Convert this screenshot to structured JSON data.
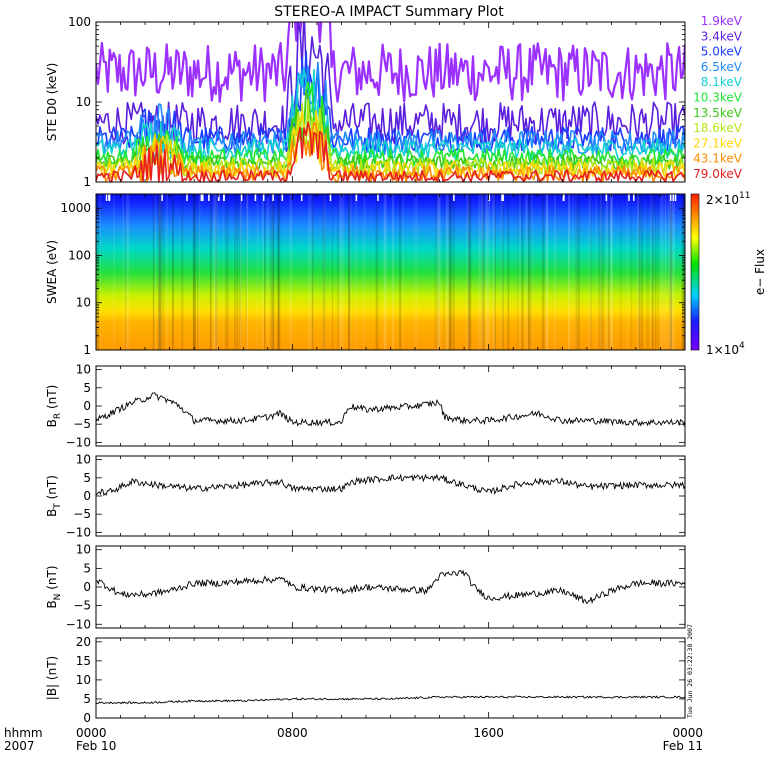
{
  "title": "STEREO-A IMPACT Summary Plot",
  "timestamp": "Tue Jun 26 03:22:38 2007",
  "colorbar": {
    "label": "e− Flux",
    "max_label": "2×10",
    "max_exp": "11",
    "min_label": "1×10",
    "min_exp": "4"
  },
  "time_axis": {
    "row1_label": "hhmm",
    "row2_label": "2007",
    "ticks": [
      {
        "hour": 0,
        "label": "0000",
        "date": "Feb 10"
      },
      {
        "hour": 8,
        "label": "0800",
        "date": ""
      },
      {
        "hour": 16,
        "label": "1600",
        "date": ""
      },
      {
        "hour": 24,
        "label": "0000",
        "date": "Feb 11"
      }
    ],
    "range_hours": [
      0,
      24
    ]
  },
  "chart_data": [
    {
      "type": "line",
      "panel": "ste",
      "ylabel": "STE D0 (keV)",
      "yscale": "log",
      "ylim": [
        1,
        100
      ],
      "yticks": [
        "1",
        "10",
        "100"
      ],
      "legend_position": "right",
      "series": [
        {
          "name": "1.9keV",
          "color": "#9b30ff",
          "level": [
            10,
            55
          ]
        },
        {
          "name": "3.4keV",
          "color": "#5a1edc",
          "level": [
            3,
            10
          ]
        },
        {
          "name": "5.0keV",
          "color": "#1a3cff",
          "level": [
            2.4,
            5
          ]
        },
        {
          "name": "6.5keV",
          "color": "#1e8cff",
          "level": [
            2.2,
            4.5
          ]
        },
        {
          "name": "8.1keV",
          "color": "#14d2d2",
          "level": [
            1.9,
            3.5
          ]
        },
        {
          "name": "10.3keV",
          "color": "#1ee632",
          "level": [
            1.6,
            2.6
          ]
        },
        {
          "name": "13.5keV",
          "color": "#3cc814",
          "level": [
            1.4,
            2.2
          ]
        },
        {
          "name": "18.6keV",
          "color": "#b4e614",
          "level": [
            1.2,
            2.0
          ]
        },
        {
          "name": "27.1keV",
          "color": "#ffd700",
          "level": [
            1.1,
            1.8
          ]
        },
        {
          "name": "43.1keV",
          "color": "#ff8c00",
          "level": [
            1.0,
            1.6
          ]
        },
        {
          "name": "79.0keV",
          "color": "#e61e1e",
          "level": [
            1.0,
            1.4
          ]
        }
      ],
      "event_window_hours": [
        7.8,
        9.6
      ]
    },
    {
      "type": "heatmap",
      "panel": "swea",
      "ylabel": "SWEA (eV)",
      "yscale": "log",
      "ylim": [
        1,
        2000
      ],
      "yticks": [
        "1",
        "10",
        "100",
        "1000"
      ],
      "zscale": "log",
      "zlim": [
        10000,
        200000000000
      ]
    },
    {
      "type": "line",
      "panel": "br",
      "ylabel": "B",
      "ylabel_sub": "R",
      "ylabel_unit": "(nT)",
      "ylim": [
        -11,
        11
      ],
      "yticks": [
        "−10",
        "−5",
        "0",
        "5",
        "10"
      ],
      "x_hours": [
        0,
        1.5,
        2.0,
        2.3,
        2.8,
        3.4,
        4.0,
        6.0,
        7.0,
        7.5,
        8.0,
        10.0,
        10.3,
        11.0,
        13.0,
        14.0,
        14.2,
        15.0,
        16.0,
        18.0,
        19.0,
        20.0,
        22.0,
        24.0
      ],
      "y": [
        -4,
        1,
        2,
        3,
        2,
        0,
        -4,
        -4,
        -3,
        -2,
        -4.5,
        -4.5,
        0,
        -1,
        0,
        1,
        -3,
        -4,
        -4,
        -2,
        -4,
        -4,
        -4.5,
        -4.5
      ]
    },
    {
      "type": "line",
      "panel": "bt",
      "ylabel": "B",
      "ylabel_sub": "T",
      "ylabel_unit": "(nT)",
      "ylim": [
        -11,
        11
      ],
      "yticks": [
        "−10",
        "−5",
        "0",
        "5",
        "10"
      ],
      "x_hours": [
        0,
        0.5,
        1.5,
        2.5,
        4.0,
        6.0,
        7.5,
        8.0,
        10.0,
        10.5,
        12.0,
        14.0,
        15.0,
        16.0,
        17.0,
        18.0,
        19.0,
        20.0,
        22.0,
        24.0
      ],
      "y": [
        1,
        1,
        4,
        3,
        2,
        3,
        4,
        2,
        2,
        4,
        5,
        5,
        3,
        1,
        3,
        4,
        4,
        2.5,
        3,
        3
      ]
    },
    {
      "type": "line",
      "panel": "bn",
      "ylabel": "B",
      "ylabel_sub": "N",
      "ylabel_unit": "(nT)",
      "ylim": [
        -11,
        11
      ],
      "yticks": [
        "−10",
        "−5",
        "0",
        "5",
        "10"
      ],
      "x_hours": [
        0,
        1.0,
        2.0,
        3.0,
        4.0,
        5.0,
        7.0,
        7.7,
        8.0,
        10.0,
        11.0,
        13.5,
        14.0,
        15.0,
        15.4,
        16.0,
        17.5,
        19.0,
        20.0,
        21.0,
        22.0,
        24.0
      ],
      "y": [
        2,
        -2,
        -2,
        -1,
        1,
        1,
        2,
        2,
        0,
        -1,
        0,
        -1,
        3,
        4,
        0,
        -3,
        -2,
        -1,
        -4,
        -1,
        1,
        1
      ]
    },
    {
      "type": "line",
      "panel": "bmag",
      "ylabel": "|B| (nT)",
      "ylim": [
        0,
        21
      ],
      "yticks": [
        "0",
        "5",
        "10",
        "15",
        "20"
      ],
      "x_hours": [
        0,
        2.0,
        4.0,
        6.0,
        8.0,
        10.0,
        12.0,
        14.0,
        16.0,
        18.0,
        20.0,
        22.0,
        24.0
      ],
      "y": [
        4,
        4,
        4.5,
        4.5,
        5,
        5,
        5,
        5.5,
        5.5,
        5.5,
        5.5,
        5.5,
        5.5
      ]
    }
  ]
}
